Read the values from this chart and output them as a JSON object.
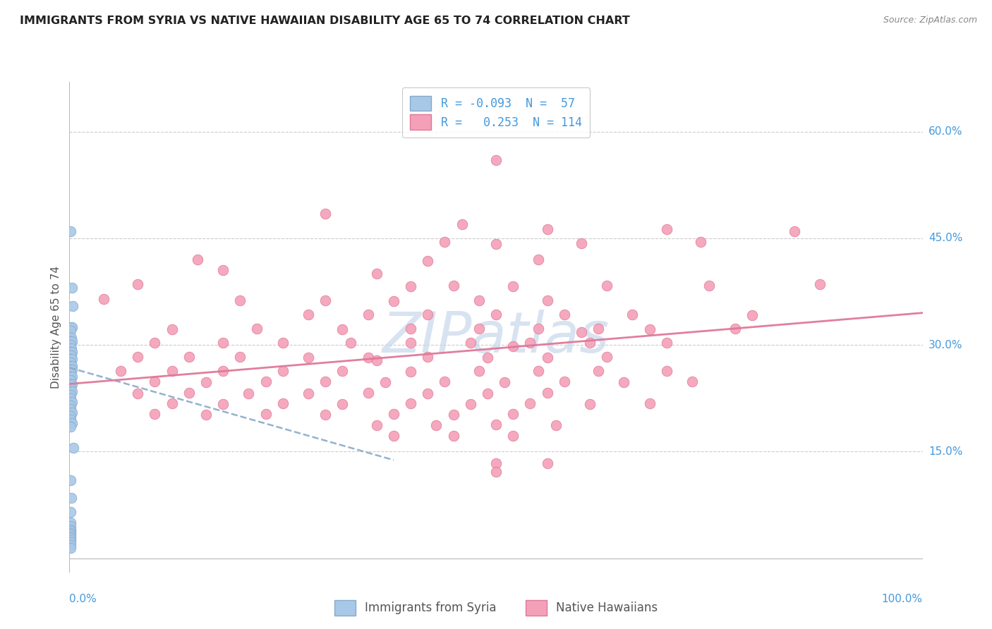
{
  "title": "IMMIGRANTS FROM SYRIA VS NATIVE HAWAIIAN DISABILITY AGE 65 TO 74 CORRELATION CHART",
  "source": "Source: ZipAtlas.com",
  "ylabel": "Disability Age 65 to 74",
  "ytick_vals": [
    0.15,
    0.3,
    0.45,
    0.6
  ],
  "ytick_labels": [
    "15.0%",
    "30.0%",
    "45.0%",
    "60.0%"
  ],
  "xlim": [
    0.0,
    1.0
  ],
  "ylim": [
    -0.02,
    0.67
  ],
  "syria_R": -0.093,
  "syria_N": 57,
  "hawaii_R": 0.253,
  "hawaii_N": 114,
  "syria_color": "#a8c8e8",
  "syria_edge": "#88aac8",
  "hawaii_color": "#f4a0b8",
  "hawaii_edge": "#e07898",
  "syria_line_color": "#88aac8",
  "hawaii_line_color": "#e07898",
  "grid_color": "#cccccc",
  "title_color": "#222222",
  "source_color": "#888888",
  "axis_label_color": "#555555",
  "tick_label_color": "#4499dd",
  "watermark_text": "ZIPatlas",
  "watermark_color": "#c8d8ec",
  "syria_scatter": [
    [
      0.001,
      0.46
    ],
    [
      0.003,
      0.38
    ],
    [
      0.004,
      0.355
    ],
    [
      0.002,
      0.325
    ],
    [
      0.003,
      0.325
    ],
    [
      0.001,
      0.32
    ],
    [
      0.002,
      0.31
    ],
    [
      0.001,
      0.305
    ],
    [
      0.003,
      0.305
    ],
    [
      0.001,
      0.3
    ],
    [
      0.002,
      0.295
    ],
    [
      0.001,
      0.29
    ],
    [
      0.003,
      0.29
    ],
    [
      0.001,
      0.285
    ],
    [
      0.002,
      0.285
    ],
    [
      0.001,
      0.28
    ],
    [
      0.003,
      0.28
    ],
    [
      0.001,
      0.275
    ],
    [
      0.001,
      0.27
    ],
    [
      0.003,
      0.27
    ],
    [
      0.001,
      0.265
    ],
    [
      0.003,
      0.265
    ],
    [
      0.001,
      0.26
    ],
    [
      0.001,
      0.255
    ],
    [
      0.003,
      0.255
    ],
    [
      0.001,
      0.25
    ],
    [
      0.001,
      0.245
    ],
    [
      0.003,
      0.245
    ],
    [
      0.001,
      0.24
    ],
    [
      0.001,
      0.235
    ],
    [
      0.003,
      0.235
    ],
    [
      0.001,
      0.23
    ],
    [
      0.001,
      0.225
    ],
    [
      0.003,
      0.22
    ],
    [
      0.001,
      0.215
    ],
    [
      0.001,
      0.21
    ],
    [
      0.003,
      0.205
    ],
    [
      0.001,
      0.2
    ],
    [
      0.001,
      0.195
    ],
    [
      0.003,
      0.19
    ],
    [
      0.001,
      0.185
    ],
    [
      0.005,
      0.155
    ],
    [
      0.001,
      0.11
    ],
    [
      0.002,
      0.085
    ],
    [
      0.001,
      0.065
    ],
    [
      0.001,
      0.05
    ],
    [
      0.001,
      0.045
    ],
    [
      0.001,
      0.04
    ],
    [
      0.001,
      0.038
    ],
    [
      0.001,
      0.035
    ],
    [
      0.001,
      0.033
    ],
    [
      0.001,
      0.03
    ],
    [
      0.001,
      0.028
    ],
    [
      0.001,
      0.025
    ],
    [
      0.001,
      0.022
    ],
    [
      0.001,
      0.018
    ],
    [
      0.001,
      0.014
    ]
  ],
  "hawaii_scatter": [
    [
      0.5,
      0.56
    ],
    [
      0.3,
      0.485
    ],
    [
      0.46,
      0.47
    ],
    [
      0.56,
      0.463
    ],
    [
      0.7,
      0.463
    ],
    [
      0.85,
      0.46
    ],
    [
      0.44,
      0.445
    ],
    [
      0.5,
      0.442
    ],
    [
      0.6,
      0.443
    ],
    [
      0.74,
      0.445
    ],
    [
      0.15,
      0.42
    ],
    [
      0.42,
      0.418
    ],
    [
      0.55,
      0.42
    ],
    [
      0.18,
      0.405
    ],
    [
      0.36,
      0.4
    ],
    [
      0.08,
      0.385
    ],
    [
      0.4,
      0.382
    ],
    [
      0.45,
      0.383
    ],
    [
      0.52,
      0.382
    ],
    [
      0.63,
      0.383
    ],
    [
      0.75,
      0.383
    ],
    [
      0.88,
      0.385
    ],
    [
      0.04,
      0.365
    ],
    [
      0.2,
      0.363
    ],
    [
      0.3,
      0.363
    ],
    [
      0.38,
      0.362
    ],
    [
      0.48,
      0.363
    ],
    [
      0.56,
      0.363
    ],
    [
      0.28,
      0.343
    ],
    [
      0.35,
      0.343
    ],
    [
      0.42,
      0.343
    ],
    [
      0.5,
      0.343
    ],
    [
      0.58,
      0.343
    ],
    [
      0.66,
      0.343
    ],
    [
      0.8,
      0.342
    ],
    [
      0.12,
      0.322
    ],
    [
      0.22,
      0.323
    ],
    [
      0.32,
      0.322
    ],
    [
      0.4,
      0.323
    ],
    [
      0.48,
      0.323
    ],
    [
      0.55,
      0.323
    ],
    [
      0.62,
      0.323
    ],
    [
      0.68,
      0.322
    ],
    [
      0.78,
      0.323
    ],
    [
      0.6,
      0.318
    ],
    [
      0.1,
      0.303
    ],
    [
      0.18,
      0.303
    ],
    [
      0.25,
      0.303
    ],
    [
      0.33,
      0.303
    ],
    [
      0.4,
      0.303
    ],
    [
      0.47,
      0.303
    ],
    [
      0.54,
      0.303
    ],
    [
      0.61,
      0.303
    ],
    [
      0.7,
      0.303
    ],
    [
      0.52,
      0.298
    ],
    [
      0.08,
      0.283
    ],
    [
      0.14,
      0.283
    ],
    [
      0.2,
      0.283
    ],
    [
      0.28,
      0.282
    ],
    [
      0.35,
      0.282
    ],
    [
      0.42,
      0.283
    ],
    [
      0.49,
      0.282
    ],
    [
      0.56,
      0.282
    ],
    [
      0.63,
      0.283
    ],
    [
      0.36,
      0.278
    ],
    [
      0.06,
      0.263
    ],
    [
      0.12,
      0.263
    ],
    [
      0.18,
      0.263
    ],
    [
      0.25,
      0.263
    ],
    [
      0.32,
      0.263
    ],
    [
      0.4,
      0.262
    ],
    [
      0.48,
      0.263
    ],
    [
      0.55,
      0.263
    ],
    [
      0.62,
      0.263
    ],
    [
      0.7,
      0.263
    ],
    [
      0.1,
      0.248
    ],
    [
      0.16,
      0.247
    ],
    [
      0.23,
      0.248
    ],
    [
      0.3,
      0.248
    ],
    [
      0.37,
      0.247
    ],
    [
      0.44,
      0.248
    ],
    [
      0.51,
      0.247
    ],
    [
      0.58,
      0.248
    ],
    [
      0.65,
      0.247
    ],
    [
      0.73,
      0.248
    ],
    [
      0.08,
      0.232
    ],
    [
      0.14,
      0.233
    ],
    [
      0.21,
      0.232
    ],
    [
      0.28,
      0.232
    ],
    [
      0.35,
      0.233
    ],
    [
      0.42,
      0.232
    ],
    [
      0.49,
      0.232
    ],
    [
      0.56,
      0.233
    ],
    [
      0.12,
      0.218
    ],
    [
      0.18,
      0.217
    ],
    [
      0.25,
      0.218
    ],
    [
      0.32,
      0.217
    ],
    [
      0.4,
      0.218
    ],
    [
      0.47,
      0.217
    ],
    [
      0.54,
      0.218
    ],
    [
      0.61,
      0.217
    ],
    [
      0.68,
      0.218
    ],
    [
      0.1,
      0.203
    ],
    [
      0.16,
      0.202
    ],
    [
      0.23,
      0.203
    ],
    [
      0.3,
      0.202
    ],
    [
      0.38,
      0.203
    ],
    [
      0.45,
      0.202
    ],
    [
      0.52,
      0.203
    ],
    [
      0.36,
      0.187
    ],
    [
      0.43,
      0.187
    ],
    [
      0.5,
      0.188
    ],
    [
      0.57,
      0.187
    ],
    [
      0.38,
      0.172
    ],
    [
      0.45,
      0.172
    ],
    [
      0.52,
      0.172
    ],
    [
      0.5,
      0.133
    ],
    [
      0.56,
      0.133
    ],
    [
      0.5,
      0.122
    ]
  ],
  "syria_line": [
    [
      0.0,
      0.268
    ],
    [
      0.38,
      0.138
    ]
  ],
  "hawaii_line": [
    [
      0.0,
      0.245
    ],
    [
      1.0,
      0.345
    ]
  ]
}
